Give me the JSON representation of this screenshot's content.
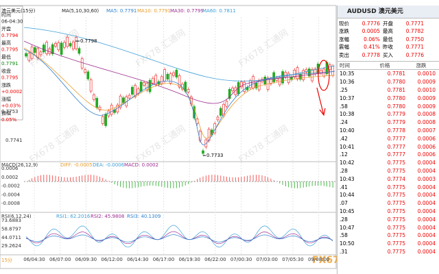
{
  "chart_header": {
    "symbol": "澳元美元(15分)",
    "ma": "MA(5,10,30,60)",
    "ma5": "MA5: 0.7791",
    "ma10": "MA10: 0.7791",
    "ma30": "MA30: 0.7799",
    "ma60": "MA60: 0.7811"
  },
  "info_box": [
    {
      "label": "时间",
      "value": "06-04:30"
    },
    {
      "label": "开盘",
      "value": "0.7794"
    },
    {
      "label": "最高",
      "value": "0.7795"
    },
    {
      "label": "最低",
      "value": "0.7791"
    },
    {
      "label": "收盘",
      "value": "0.7795"
    },
    {
      "label": "涨跌",
      "value": "+0.0002"
    },
    {
      "label": "涨幅",
      "value": "+0.03%"
    },
    {
      "label": "振幅",
      "value": "0.05%"
    }
  ],
  "price_axis": [
    "0.7753",
    "0.7741"
  ],
  "annotations": {
    "high": "0.7798",
    "low": "0.7733"
  },
  "macd": {
    "title": "MACD(26,12,9)",
    "diff": "DIFF: -0.0005",
    "dea": "DEA: -0.0006",
    "macd": "MACD: 0.0002",
    "axis": [
      "0.0006",
      "0.0002",
      "-0.0002",
      "-0.0004",
      "-0.0008"
    ]
  },
  "rsi": {
    "title": "RSI(6,12,24)",
    "rsi1": "RSI1: 62.2016",
    "rsi2": "RSI2: 45.9808",
    "rsi3": "RSI3: 40.1309",
    "axis": [
      "73.6883",
      "58.8797",
      "44.0711",
      "29.2624"
    ]
  },
  "time_axis": [
    "06/04:30",
    "06/07:00",
    "06/09:30",
    "06/12:00",
    "06/14:30",
    "06/17:00",
    "06/19:30",
    "06/22:00",
    "07/00:30",
    "07/03:00",
    "07/05:30",
    "09/08:00"
  ],
  "period": "15分",
  "watermark": "FX678 汇通网",
  "quote": {
    "title": "AUDUSD 澳元美元",
    "rows": [
      [
        "现价",
        "0.7776",
        "开盘",
        "0.7771"
      ],
      [
        "涨跌",
        "0.0005",
        "最高",
        "0.7782"
      ],
      [
        "涨幅",
        "0.06%",
        "最低",
        "0.7750"
      ],
      [
        "震幅",
        "0.41%",
        "昨收",
        "0.7771"
      ],
      [
        "卖出",
        "0.7778",
        "买入",
        "0.7776"
      ]
    ]
  },
  "ticks": {
    "columns": [
      "时间",
      "价格",
      "涨跌"
    ],
    "rows": [
      [
        "10:35",
        "0.7781",
        "0.0010"
      ],
      [
        "10:36",
        "0.7780",
        "0.0009"
      ],
      [
        ".25",
        "0.7781",
        "0.0010"
      ],
      [
        "10:37",
        "0.7780",
        "0.0009"
      ],
      [
        ".58",
        "0.7780",
        "0.0009"
      ],
      [
        "10:38",
        "0.7779",
        "0.0008"
      ],
      [
        ".24",
        "0.7779",
        "0.0008"
      ],
      [
        "10:40",
        "0.7778",
        "0.0007"
      ],
      [
        ".42",
        "0.7777",
        "0.0006"
      ],
      [
        "10:41",
        "0.7777",
        "0.0006"
      ],
      [
        ".12",
        "0.7777",
        "0.0006"
      ],
      [
        "10:42",
        "0.7775",
        "0.0004"
      ],
      [
        ".28",
        "0.7775",
        "0.0004"
      ],
      [
        "10:43",
        "0.7774",
        "0.0003"
      ],
      [
        ".41",
        "0.7775",
        "0.0004"
      ],
      [
        "10:44",
        "0.7775",
        "0.0004"
      ],
      [
        ".07",
        "0.7775",
        "0.0004"
      ],
      [
        "10:45",
        "0.7775",
        "0.0004"
      ],
      [
        ".28",
        "0.7775",
        "0.0004"
      ],
      [
        "10:47",
        "0.7775",
        "0.0004"
      ],
      [
        ".58",
        "0.7775",
        "0.0004"
      ],
      [
        "10:50",
        "0.7775",
        "0.0004"
      ],
      [
        ".31",
        "0.7775",
        "0.0004"
      ]
    ]
  }
}
